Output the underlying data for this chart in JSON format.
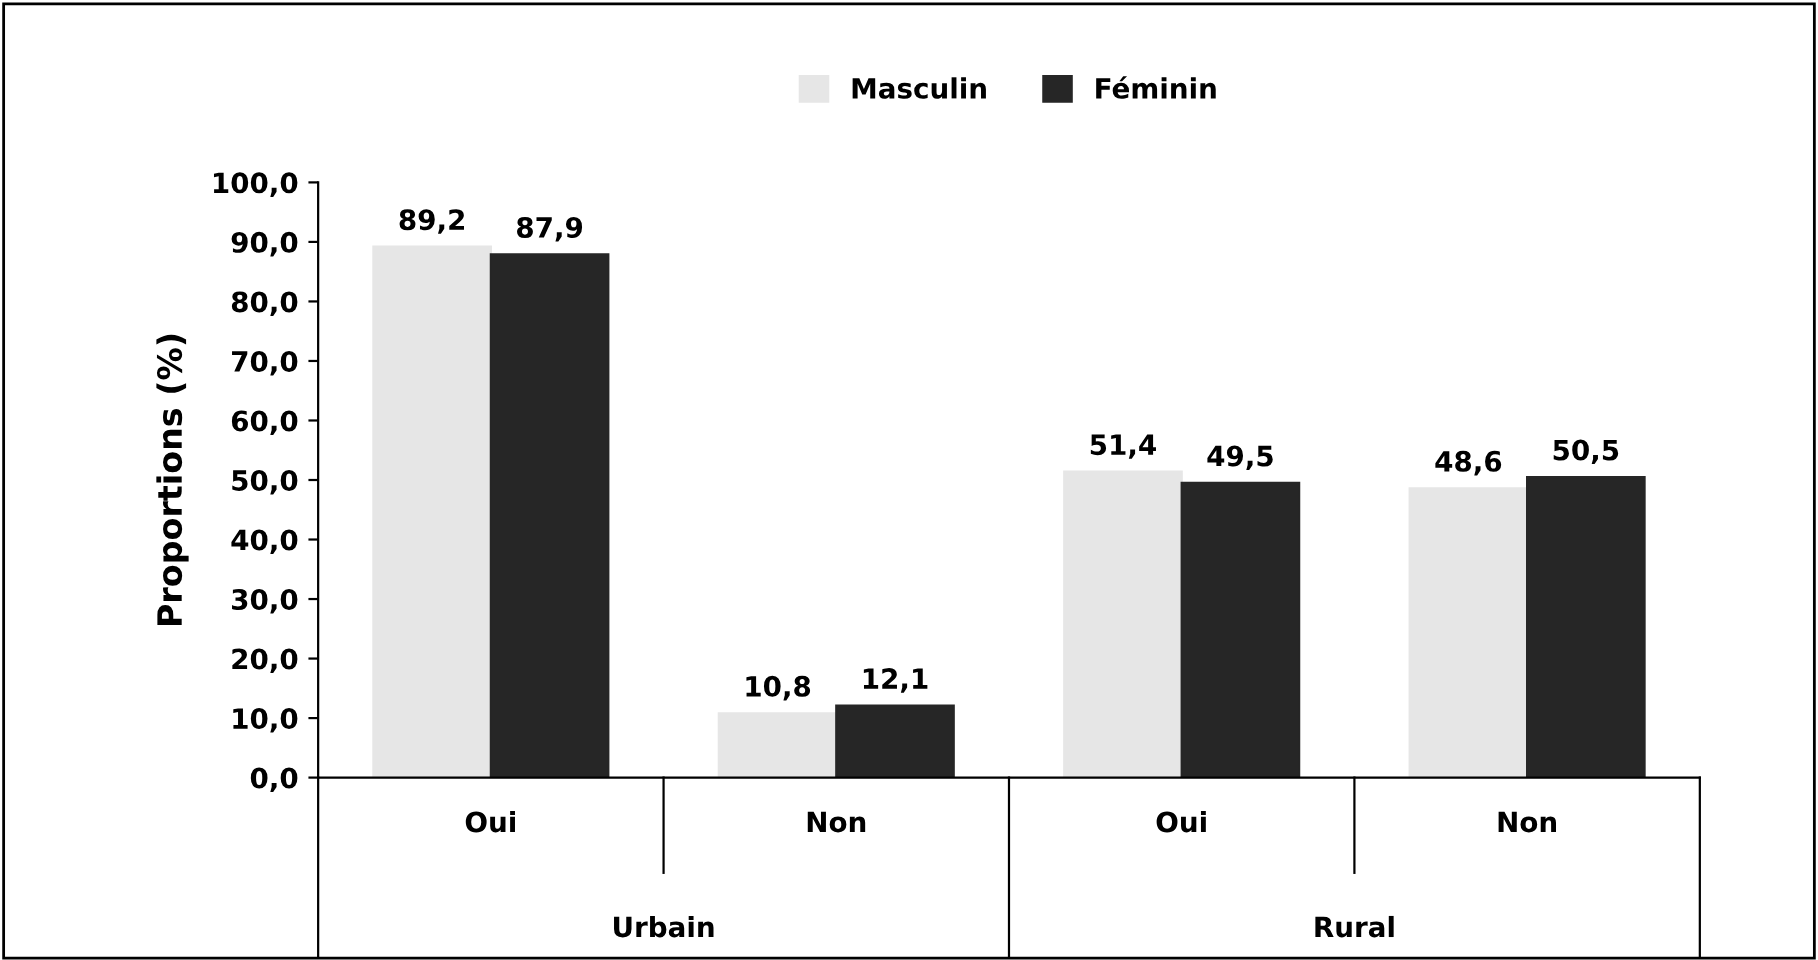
{
  "chart_data": {
    "type": "bar",
    "categories": [
      "Oui",
      "Non",
      "Oui",
      "Non"
    ],
    "series": [
      {
        "name": "Masculin",
        "color": "#e6e6e6",
        "values": [
          89.2,
          10.8,
          51.4,
          48.6
        ],
        "value_labels": [
          "89,2",
          "10,8",
          "51,4",
          "48,6"
        ]
      },
      {
        "name": "Féminin",
        "color": "#262626",
        "values": [
          87.9,
          12.1,
          49.5,
          50.5
        ],
        "value_labels": [
          "87,9",
          "12,1",
          "49,5",
          "50,5"
        ]
      }
    ],
    "ylabel": "Proportions (%)",
    "ylim": [
      0,
      100
    ],
    "yticks": [
      {
        "value": 0,
        "label": "0,0"
      },
      {
        "value": 10,
        "label": "10,0"
      },
      {
        "value": 20,
        "label": "20,0"
      },
      {
        "value": 30,
        "label": "30,0"
      },
      {
        "value": 40,
        "label": "40,0"
      },
      {
        "value": 50,
        "label": "50,0"
      },
      {
        "value": 60,
        "label": "60,0"
      },
      {
        "value": 70,
        "label": "70,0"
      },
      {
        "value": 80,
        "label": "80,0"
      },
      {
        "value": 90,
        "label": "90,0"
      },
      {
        "value": 100,
        "label": "100,0"
      }
    ],
    "annotations": [
      "Urbain",
      "Rural"
    ],
    "legend": "top",
    "grid": false
  }
}
